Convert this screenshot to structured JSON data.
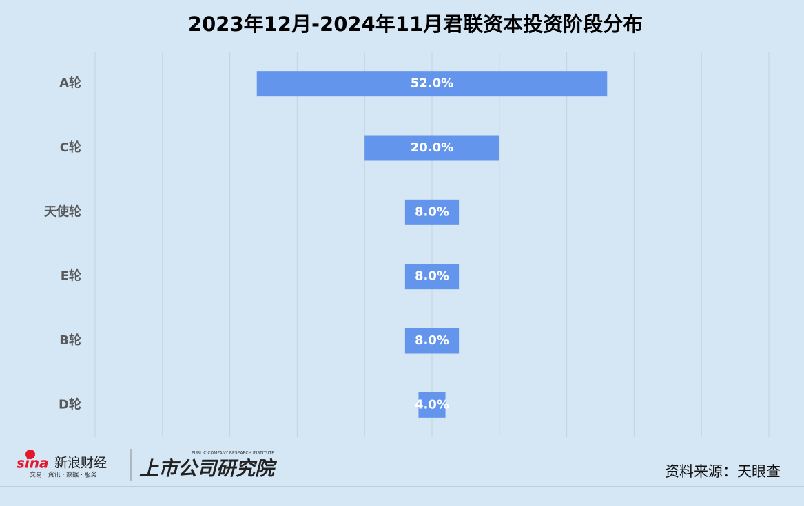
{
  "chart_data": {
    "type": "funnel",
    "title": "2023年12月-2024年11月君联资本投资阶段分布",
    "categories": [
      "A轮",
      "C轮",
      "天使轮",
      "E轮",
      "B轮",
      "D轮"
    ],
    "values": [
      52,
      20,
      8,
      8,
      8,
      4
    ],
    "value_labels": [
      "52.0%",
      "20.0%",
      "8.0%",
      "8.0%",
      "8.0%",
      "4.0%"
    ],
    "color": "#6495ed",
    "xlim": [
      0,
      100
    ],
    "xticks": [
      0,
      10,
      20,
      30,
      40,
      50,
      60,
      70,
      80,
      90,
      100
    ],
    "grid": true
  },
  "footer": {
    "logo_sina": "sina",
    "logo_name": "新浪财经",
    "logo_tagline": "交易 · 资讯 · 数据 · 服务",
    "institute_en": "PUBLIC COMPANY RESEARCH INSTITUTE",
    "institute": "上市公司研究院",
    "source": "资料来源：天眼查"
  }
}
